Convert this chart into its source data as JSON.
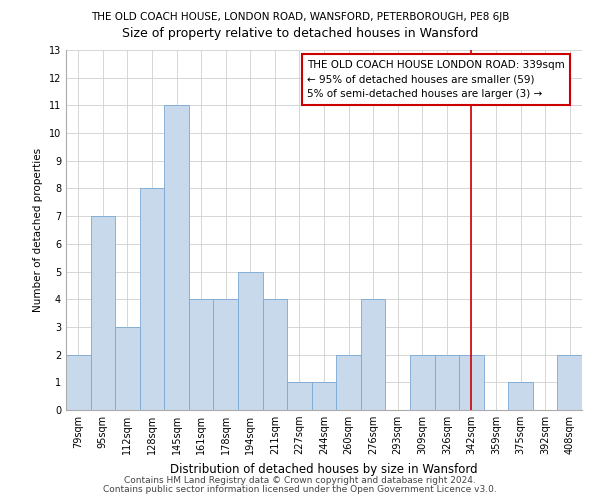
{
  "title1": "THE OLD COACH HOUSE, LONDON ROAD, WANSFORD, PETERBOROUGH, PE8 6JB",
  "title2": "Size of property relative to detached houses in Wansford",
  "xlabel": "Distribution of detached houses by size in Wansford",
  "ylabel": "Number of detached properties",
  "categories": [
    "79sqm",
    "95sqm",
    "112sqm",
    "128sqm",
    "145sqm",
    "161sqm",
    "178sqm",
    "194sqm",
    "211sqm",
    "227sqm",
    "244sqm",
    "260sqm",
    "276sqm",
    "293sqm",
    "309sqm",
    "326sqm",
    "342sqm",
    "359sqm",
    "375sqm",
    "392sqm",
    "408sqm"
  ],
  "values": [
    2,
    7,
    3,
    8,
    11,
    4,
    4,
    5,
    4,
    1,
    1,
    2,
    4,
    0,
    2,
    2,
    2,
    0,
    1,
    0,
    2
  ],
  "bar_color": "#c9d9ec",
  "bar_edge_color": "#7aa8d4",
  "grid_color": "#d0d0d0",
  "vline_x_index": 16,
  "vline_color": "#cc0000",
  "annotation_box_edge_color": "#cc0000",
  "annotation_line1": "THE OLD COACH HOUSE LONDON ROAD: 339sqm",
  "annotation_line2": "← 95% of detached houses are smaller (59)",
  "annotation_line3": "5% of semi-detached houses are larger (3) →",
  "ylim_max": 13,
  "yticks": [
    0,
    1,
    2,
    3,
    4,
    5,
    6,
    7,
    8,
    9,
    10,
    11,
    12,
    13
  ],
  "footer1": "Contains HM Land Registry data © Crown copyright and database right 2024.",
  "footer2": "Contains public sector information licensed under the Open Government Licence v3.0.",
  "title1_fontsize": 7.5,
  "title2_fontsize": 9,
  "axis_label_fontsize": 8.5,
  "ylabel_fontsize": 7.5,
  "tick_fontsize": 7,
  "annotation_fontsize": 7.5,
  "footer_fontsize": 6.5,
  "background_color": "#ffffff"
}
